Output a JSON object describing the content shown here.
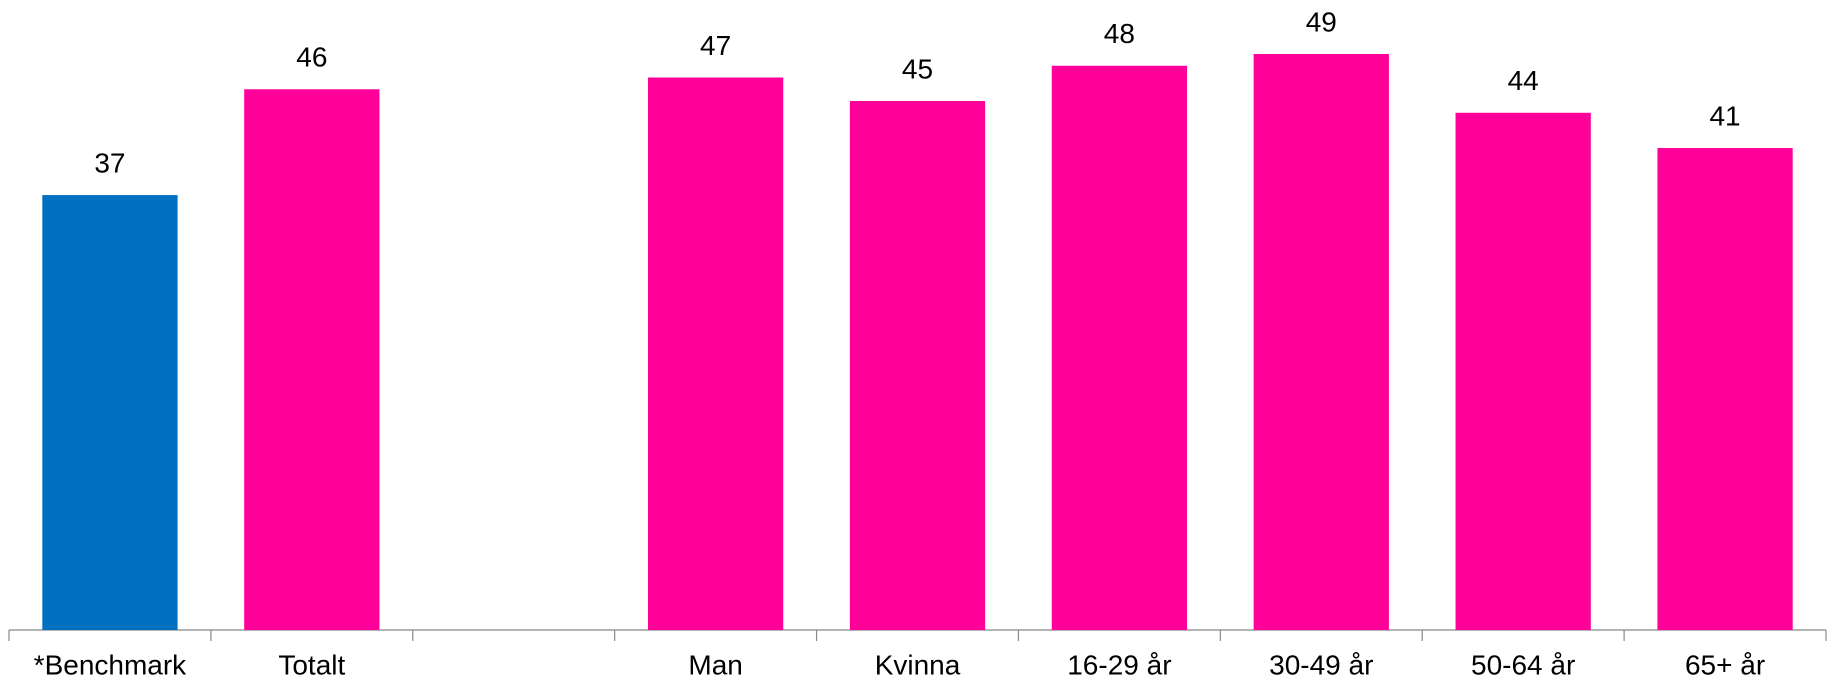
{
  "chart_data": {
    "type": "bar",
    "categories": [
      "*Benchmark",
      "Totalt",
      null,
      "Man",
      "Kvinna",
      "16-29 år",
      "30-49 år",
      "50-64 år",
      "65+ år"
    ],
    "values": [
      37,
      46,
      null,
      47,
      45,
      48,
      49,
      44,
      41
    ],
    "colors": [
      "#0070c0",
      "#ff0099",
      null,
      "#ff0099",
      "#ff0099",
      "#ff0099",
      "#ff0099",
      "#ff0099",
      "#ff0099"
    ]
  }
}
